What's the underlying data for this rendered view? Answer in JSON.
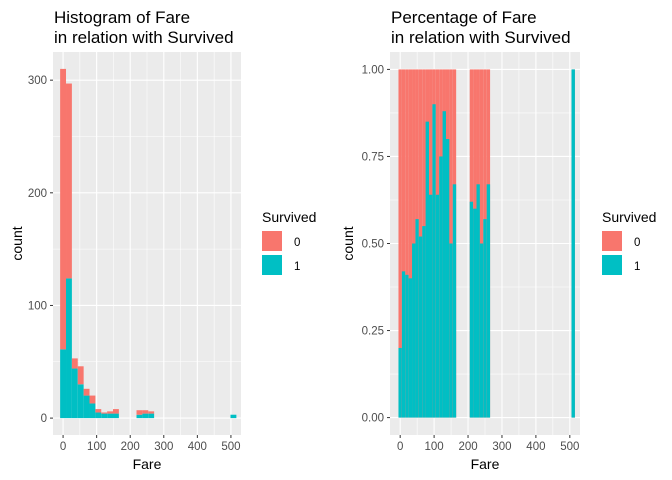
{
  "colors": {
    "died": "#f8766d",
    "survived": "#00bfc4"
  },
  "legend": {
    "title": "Survived",
    "entries": [
      {
        "key": "0",
        "label": "0"
      },
      {
        "key": "1",
        "label": "1"
      }
    ]
  },
  "chart_data": [
    {
      "type": "bar",
      "stacked": true,
      "title": "Histogram of Fare\nin relation with Survived",
      "xlabel": "Fare",
      "ylabel": "count",
      "xlim": [
        -30,
        530
      ],
      "ylim": [
        -15,
        325
      ],
      "xticks": [
        0,
        100,
        200,
        300,
        400,
        500
      ],
      "yticks": [
        0,
        100,
        200,
        300
      ],
      "bin_width": 17.5,
      "x": [
        0,
        17.5,
        35,
        52.5,
        70,
        87.5,
        105,
        122.5,
        140,
        157.5,
        175,
        192.5,
        210,
        227.5,
        245,
        262.5,
        280,
        297.5,
        315,
        332.5,
        350,
        367.5,
        385,
        402.5,
        420,
        437.5,
        455,
        472.5,
        490,
        507.5
      ],
      "series": [
        {
          "name": "0",
          "values": [
            249,
            173,
            9,
            16,
            6,
            7,
            3,
            1,
            2,
            4,
            0,
            0,
            0,
            4,
            3,
            2,
            0,
            0,
            0,
            0,
            0,
            0,
            0,
            0,
            0,
            0,
            0,
            0,
            0,
            0
          ]
        },
        {
          "name": "1",
          "values": [
            61,
            124,
            44,
            30,
            20,
            13,
            5,
            4,
            4,
            4,
            0,
            0,
            0,
            3,
            4,
            4,
            0,
            0,
            0,
            0,
            0,
            0,
            0,
            0,
            0,
            0,
            0,
            0,
            0,
            3
          ]
        }
      ]
    },
    {
      "type": "bar",
      "stacked": true,
      "normalized": true,
      "title": "Percentage of Fare\nin relation with Survived",
      "xlabel": "Fare",
      "ylabel": "count",
      "xlim": [
        -30,
        530
      ],
      "ylim": [
        -0.05,
        1.05
      ],
      "xticks": [
        0,
        100,
        200,
        300,
        400,
        500
      ],
      "yticks": [
        0.0,
        0.25,
        0.5,
        0.75,
        1.0
      ],
      "ytick_labels": [
        "0.00",
        "0.25",
        "0.50",
        "0.75",
        "1.00"
      ],
      "bin_width": 17.5,
      "x": [
        0,
        17.5,
        35,
        52.5,
        70,
        87.5,
        105,
        122.5,
        140,
        157.5,
        175,
        192.5,
        210,
        227.5,
        245,
        262.5,
        280,
        297.5,
        315,
        332.5,
        350,
        367.5,
        385,
        402.5,
        420,
        437.5,
        455,
        472.5,
        490,
        507.5
      ],
      "bins": [
        {
          "x": 0,
          "survived": 0.2
        },
        {
          "x": 10,
          "survived": 0.42
        },
        {
          "x": 20,
          "survived": 0.41
        },
        {
          "x": 30,
          "survived": 0.4
        },
        {
          "x": 40,
          "survived": 0.5
        },
        {
          "x": 50,
          "survived": 0.57
        },
        {
          "x": 60,
          "survived": 0.52
        },
        {
          "x": 70,
          "survived": 0.55
        },
        {
          "x": 80,
          "survived": 0.85
        },
        {
          "x": 90,
          "survived": 0.64
        },
        {
          "x": 100,
          "survived": 0.9
        },
        {
          "x": 110,
          "survived": 0.64
        },
        {
          "x": 120,
          "survived": 0.75
        },
        {
          "x": 130,
          "survived": 0.88
        },
        {
          "x": 140,
          "survived": 0.8
        },
        {
          "x": 150,
          "survived": 0.5
        },
        {
          "x": 160,
          "survived": 0.67
        },
        {
          "x": 210,
          "survived": 0.62
        },
        {
          "x": 220,
          "survived": 0.6
        },
        {
          "x": 230,
          "survived": 0.67
        },
        {
          "x": 240,
          "survived": 0.5
        },
        {
          "x": 250,
          "survived": 0.57
        },
        {
          "x": 260,
          "survived": 0.67
        },
        {
          "x": 510,
          "survived": 1.0
        }
      ],
      "bin_width_pct": 10
    }
  ]
}
